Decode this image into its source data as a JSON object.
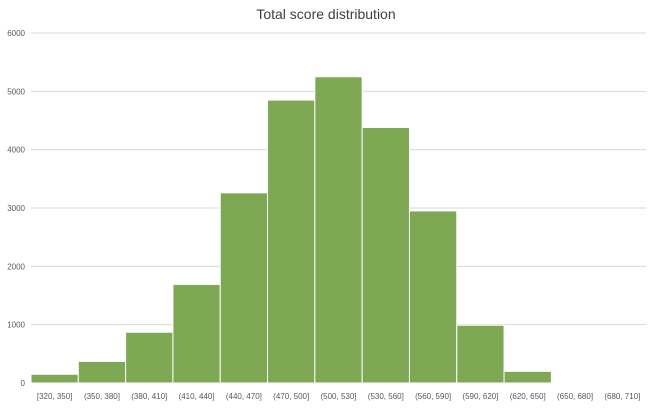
{
  "chart_data": {
    "type": "bar",
    "title": "Total score distribution",
    "xlabel": "",
    "ylabel": "",
    "categories": [
      "[320, 350]",
      "(350, 380]",
      "(380, 410]",
      "(410, 440]",
      "(440, 470]",
      "(470, 500]",
      "(500, 530]",
      "(530, 560]",
      "(560, 590]",
      "(590, 620]",
      "(620, 650]",
      "(650, 680]",
      "(680, 710]"
    ],
    "values": [
      150,
      370,
      870,
      1690,
      3260,
      4850,
      5250,
      4380,
      2950,
      990,
      200,
      15,
      3
    ],
    "ylim": [
      0,
      6000
    ],
    "yticks": [
      0,
      1000,
      2000,
      3000,
      4000,
      5000,
      6000
    ],
    "grid": true,
    "legend": "none",
    "bar_color": "#7ea854",
    "gap": "none"
  }
}
